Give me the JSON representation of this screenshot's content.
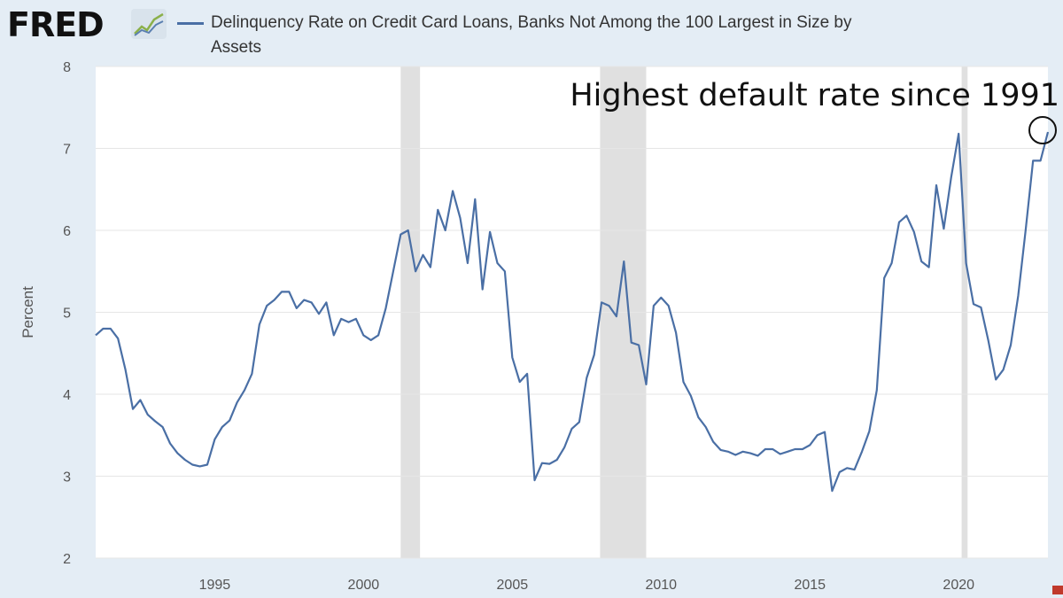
{
  "header": {
    "logo_text": "FRED",
    "logo_icon": "line-chart-icon",
    "series_title": "Delinquency Rate on Credit Card Loans, Banks Not Among the 100 Largest in Size by Assets"
  },
  "annotation": {
    "text": "Highest default rate since 1991"
  },
  "colors": {
    "line": "#4a6fa5",
    "recession": "#e0e0e0",
    "background": "#e4edf5",
    "plot": "#ffffff"
  },
  "chart_data": {
    "type": "line",
    "title": "Delinquency Rate on Credit Card Loans, Banks Not Among the 100 Largest in Size by Assets",
    "xlabel": "",
    "ylabel": "Percent",
    "xlim": [
      1991.0,
      2023.0
    ],
    "ylim": [
      2,
      8
    ],
    "x_ticks": [
      1995,
      2000,
      2005,
      2010,
      2015,
      2020
    ],
    "y_ticks": [
      2,
      3,
      4,
      5,
      6,
      7,
      8
    ],
    "grid": true,
    "recessions": [
      [
        2001.25,
        2001.9
      ],
      [
        2007.95,
        2009.5
      ],
      [
        2020.1,
        2020.3
      ]
    ],
    "series": [
      {
        "name": "Delinquency Rate on Credit Card Loans, Banks Not Among the 100 Largest in Size by Assets",
        "points": [
          [
            1991.0,
            4.72
          ],
          [
            1991.25,
            4.8
          ],
          [
            1991.5,
            4.8
          ],
          [
            1991.75,
            4.68
          ],
          [
            1992.0,
            4.3
          ],
          [
            1992.25,
            3.82
          ],
          [
            1992.5,
            3.93
          ],
          [
            1992.75,
            3.75
          ],
          [
            1993.0,
            3.67
          ],
          [
            1993.25,
            3.6
          ],
          [
            1993.5,
            3.4
          ],
          [
            1993.75,
            3.28
          ],
          [
            1994.0,
            3.2
          ],
          [
            1994.25,
            3.14
          ],
          [
            1994.5,
            3.12
          ],
          [
            1994.75,
            3.14
          ],
          [
            1995.0,
            3.45
          ],
          [
            1995.25,
            3.6
          ],
          [
            1995.5,
            3.68
          ],
          [
            1995.75,
            3.9
          ],
          [
            1996.0,
            4.05
          ],
          [
            1996.25,
            4.25
          ],
          [
            1996.5,
            4.85
          ],
          [
            1996.75,
            5.08
          ],
          [
            1997.0,
            5.15
          ],
          [
            1997.25,
            5.25
          ],
          [
            1997.5,
            5.25
          ],
          [
            1997.75,
            5.05
          ],
          [
            1998.0,
            5.15
          ],
          [
            1998.25,
            5.12
          ],
          [
            1998.5,
            4.98
          ],
          [
            1998.75,
            5.12
          ],
          [
            1999.0,
            4.72
          ],
          [
            1999.25,
            4.92
          ],
          [
            1999.5,
            4.88
          ],
          [
            1999.75,
            4.92
          ],
          [
            2000.0,
            4.72
          ],
          [
            2000.25,
            4.66
          ],
          [
            2000.5,
            4.72
          ],
          [
            2000.75,
            5.05
          ],
          [
            2001.0,
            5.5
          ],
          [
            2001.25,
            5.95
          ],
          [
            2001.5,
            6.0
          ],
          [
            2001.75,
            5.5
          ],
          [
            2002.0,
            5.7
          ],
          [
            2002.25,
            5.55
          ],
          [
            2002.5,
            6.25
          ],
          [
            2002.75,
            6.0
          ],
          [
            2003.0,
            6.48
          ],
          [
            2003.25,
            6.15
          ],
          [
            2003.5,
            5.6
          ],
          [
            2003.75,
            6.38
          ],
          [
            2004.0,
            5.28
          ],
          [
            2004.25,
            5.98
          ],
          [
            2004.5,
            5.6
          ],
          [
            2004.75,
            5.5
          ],
          [
            2005.0,
            4.45
          ],
          [
            2005.25,
            4.15
          ],
          [
            2005.5,
            4.25
          ],
          [
            2005.75,
            2.95
          ],
          [
            2006.0,
            3.16
          ],
          [
            2006.25,
            3.15
          ],
          [
            2006.5,
            3.2
          ],
          [
            2006.75,
            3.35
          ],
          [
            2007.0,
            3.58
          ],
          [
            2007.25,
            3.66
          ],
          [
            2007.5,
            4.2
          ],
          [
            2007.75,
            4.48
          ],
          [
            2008.0,
            5.12
          ],
          [
            2008.25,
            5.08
          ],
          [
            2008.5,
            4.95
          ],
          [
            2008.75,
            5.62
          ],
          [
            2009.0,
            4.63
          ],
          [
            2009.25,
            4.6
          ],
          [
            2009.5,
            4.12
          ],
          [
            2009.75,
            5.08
          ],
          [
            2010.0,
            5.18
          ],
          [
            2010.25,
            5.08
          ],
          [
            2010.5,
            4.75
          ],
          [
            2010.75,
            4.15
          ],
          [
            2011.0,
            3.98
          ],
          [
            2011.25,
            3.72
          ],
          [
            2011.5,
            3.6
          ],
          [
            2011.75,
            3.42
          ],
          [
            2012.0,
            3.32
          ],
          [
            2012.25,
            3.3
          ],
          [
            2012.5,
            3.26
          ],
          [
            2012.75,
            3.3
          ],
          [
            2013.0,
            3.28
          ],
          [
            2013.25,
            3.25
          ],
          [
            2013.5,
            3.33
          ],
          [
            2013.75,
            3.33
          ],
          [
            2014.0,
            3.27
          ],
          [
            2014.25,
            3.3
          ],
          [
            2014.5,
            3.33
          ],
          [
            2014.75,
            3.33
          ],
          [
            2015.0,
            3.38
          ],
          [
            2015.25,
            3.5
          ],
          [
            2015.5,
            3.54
          ],
          [
            2015.75,
            2.82
          ],
          [
            2016.0,
            3.05
          ],
          [
            2016.25,
            3.1
          ],
          [
            2016.5,
            3.08
          ],
          [
            2016.75,
            3.3
          ],
          [
            2017.0,
            3.55
          ],
          [
            2017.25,
            4.05
          ],
          [
            2017.5,
            5.42
          ],
          [
            2017.75,
            5.6
          ],
          [
            2018.0,
            6.1
          ],
          [
            2018.25,
            6.18
          ],
          [
            2018.5,
            5.98
          ],
          [
            2018.75,
            5.62
          ],
          [
            2019.0,
            5.55
          ],
          [
            2019.25,
            6.55
          ],
          [
            2019.5,
            6.02
          ],
          [
            2019.75,
            6.65
          ],
          [
            2020.0,
            7.18
          ],
          [
            2020.25,
            5.6
          ],
          [
            2020.5,
            5.1
          ],
          [
            2020.75,
            5.06
          ],
          [
            2021.0,
            4.65
          ],
          [
            2021.25,
            4.18
          ],
          [
            2021.5,
            4.3
          ],
          [
            2021.75,
            4.6
          ],
          [
            2022.0,
            5.2
          ],
          [
            2022.25,
            6.0
          ],
          [
            2022.5,
            6.85
          ],
          [
            2022.75,
            6.85
          ],
          [
            2023.0,
            7.2
          ]
        ]
      }
    ]
  }
}
